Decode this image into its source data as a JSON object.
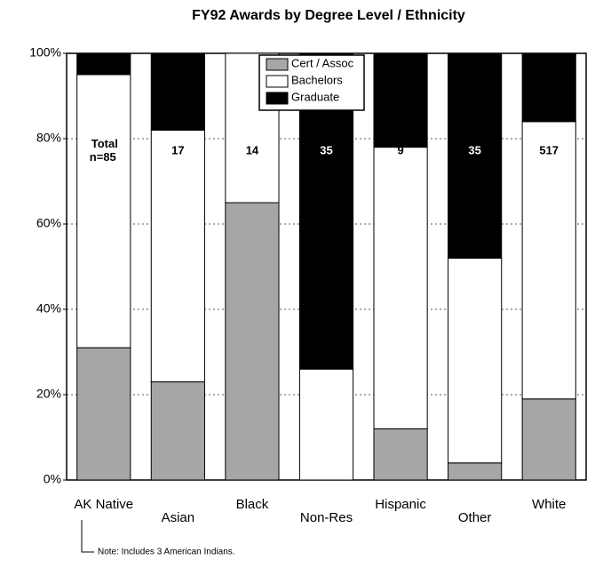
{
  "chart_data": {
    "type": "stacked_bar_100",
    "title": "FY92 Awards by Degree Level / Ethnicity",
    "categories": [
      "AK Native",
      "Asian",
      "Black",
      "Non-Res",
      "Hispanic",
      "Other",
      "White"
    ],
    "series": [
      {
        "name": "Cert / Assoc",
        "color": "#a6a6a6",
        "values": [
          31,
          23,
          65,
          0,
          12,
          4,
          19
        ]
      },
      {
        "name": "Bachelors",
        "color": "#ffffff",
        "values": [
          64,
          59,
          35,
          26,
          66,
          48,
          65
        ]
      },
      {
        "name": "Graduate",
        "color": "#000000",
        "values": [
          5,
          18,
          0,
          74,
          22,
          48,
          16
        ]
      }
    ],
    "count_labels": [
      "Total n=85",
      "17",
      "14",
      "35",
      "9",
      "35",
      "517"
    ],
    "ylim": [
      0,
      100
    ],
    "yticks": [
      {
        "value": 0,
        "label": "0%"
      },
      {
        "value": 20,
        "label": "20%"
      },
      {
        "value": 40,
        "label": "40%"
      },
      {
        "value": 60,
        "label": "60%"
      },
      {
        "value": 80,
        "label": "80%"
      },
      {
        "value": 100,
        "label": "100%"
      }
    ],
    "grid": true,
    "legend": "top",
    "note": "Note: Includes 3 American Indians."
  }
}
